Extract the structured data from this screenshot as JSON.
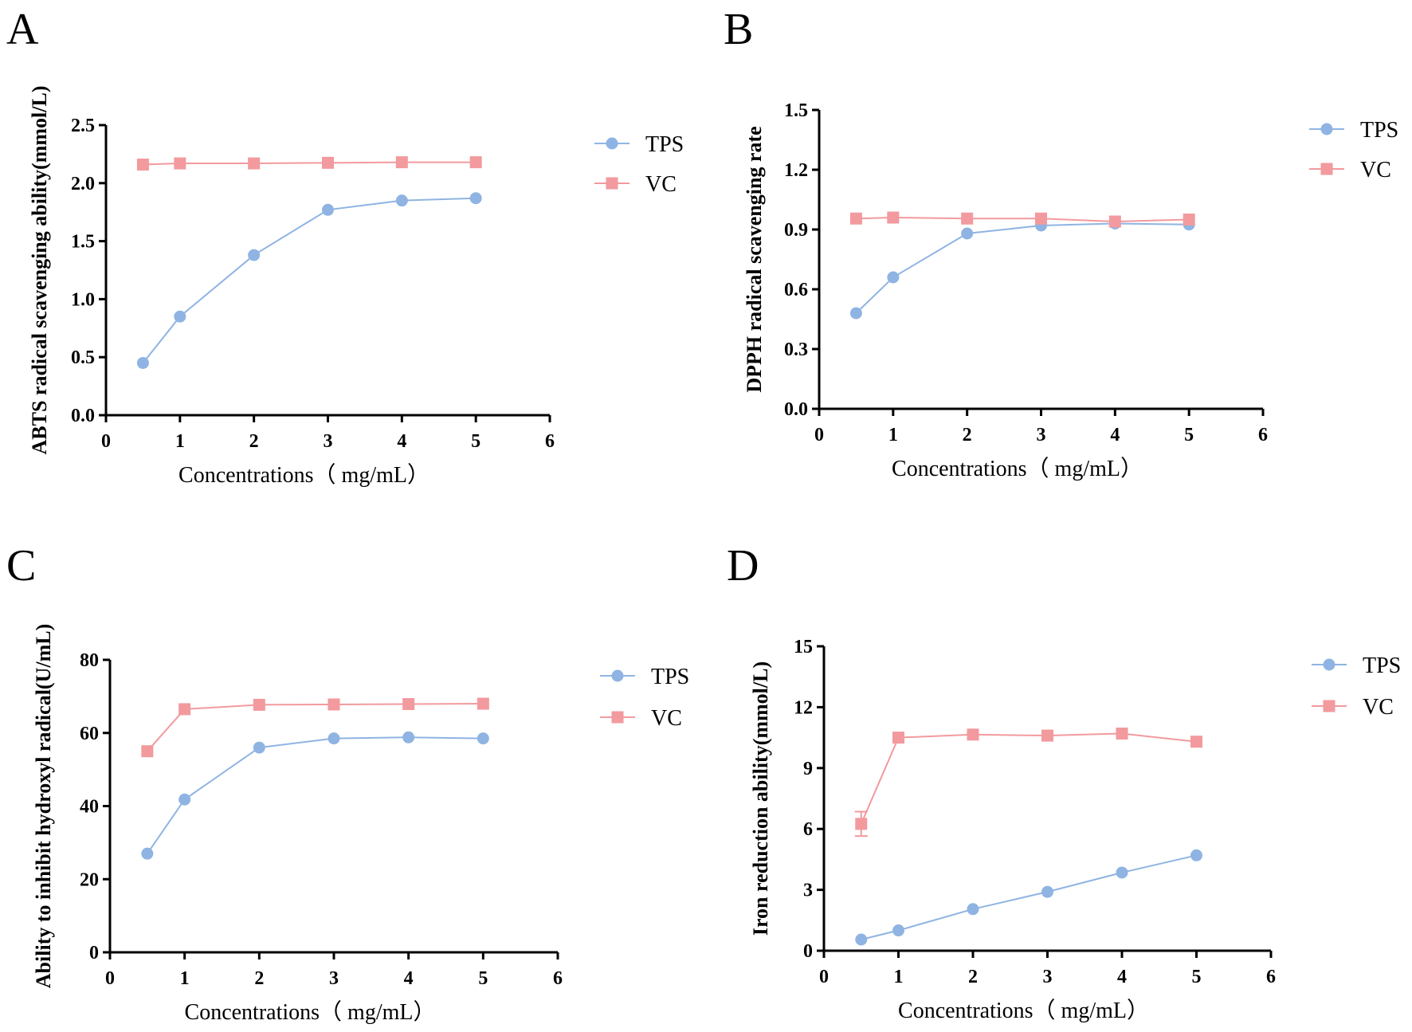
{
  "colors": {
    "tps": "#8FB4E3",
    "vc": "#F29A9E",
    "axis": "#000000"
  },
  "chart_data": [
    {
      "panel": "A",
      "type": "line",
      "xlabel": "Concentrations（ mg/mL）",
      "ylabel": "ABTS radical scavenging ability(mmol/L)",
      "xlim": [
        0,
        6
      ],
      "ylim": [
        0,
        2.5
      ],
      "xticks": [
        "0",
        "1",
        "2",
        "3",
        "4",
        "5",
        "6"
      ],
      "yticks": [
        "0.0",
        "0.5",
        "1.0",
        "1.5",
        "2.0",
        "2.5"
      ],
      "legend_position": "right",
      "series": [
        {
          "name": "TPS",
          "marker": "circle",
          "x": [
            0.5,
            1,
            2,
            3,
            4,
            5
          ],
          "values": [
            0.45,
            0.85,
            1.38,
            1.77,
            1.85,
            1.87
          ]
        },
        {
          "name": "VC",
          "marker": "square",
          "x": [
            0.5,
            1,
            2,
            3,
            4,
            5
          ],
          "values": [
            2.16,
            2.17,
            2.17,
            2.175,
            2.18,
            2.18
          ]
        }
      ]
    },
    {
      "panel": "B",
      "type": "line",
      "xlabel": "Concentrations（ mg/mL）",
      "ylabel": "DPPH  radical scavenging rate",
      "xlim": [
        0,
        6
      ],
      "ylim": [
        0,
        1.5
      ],
      "xticks": [
        "0",
        "1",
        "2",
        "3",
        "4",
        "5",
        "6"
      ],
      "yticks": [
        "0.0",
        "0.3",
        "0.6",
        "0.9",
        "1.2",
        "1.5"
      ],
      "legend_position": "right",
      "series": [
        {
          "name": "TPS",
          "marker": "circle",
          "x": [
            0.5,
            1,
            2,
            3,
            4,
            5
          ],
          "values": [
            0.48,
            0.66,
            0.88,
            0.92,
            0.93,
            0.925
          ]
        },
        {
          "name": "VC",
          "marker": "square",
          "x": [
            0.5,
            1,
            2,
            3,
            4,
            5
          ],
          "values": [
            0.955,
            0.96,
            0.955,
            0.955,
            0.94,
            0.95
          ]
        }
      ]
    },
    {
      "panel": "C",
      "type": "line",
      "xlabel": "Concentrations（ mg/mL）",
      "ylabel": "Ability to inhibit hydroxyl radical(U/mL)",
      "xlim": [
        0,
        6
      ],
      "ylim": [
        0,
        80
      ],
      "xticks": [
        "0",
        "1",
        "2",
        "3",
        "4",
        "5",
        "6"
      ],
      "yticks": [
        "0",
        "20",
        "40",
        "60",
        "80"
      ],
      "legend_position": "right",
      "series": [
        {
          "name": "TPS",
          "marker": "circle",
          "x": [
            0.5,
            1,
            2,
            3,
            4,
            5
          ],
          "values": [
            27,
            41.8,
            56,
            58.5,
            58.8,
            58.5
          ]
        },
        {
          "name": "VC",
          "marker": "square",
          "x": [
            0.5,
            1,
            2,
            3,
            4,
            5
          ],
          "values": [
            55,
            66.5,
            67.7,
            67.8,
            67.9,
            68
          ]
        }
      ]
    },
    {
      "panel": "D",
      "type": "line",
      "xlabel": "Concentrations（ mg/mL）",
      "ylabel": "Iron reduction ability(mmol/L)",
      "xlim": [
        0,
        6
      ],
      "ylim": [
        0,
        15
      ],
      "xticks": [
        "0",
        "1",
        "2",
        "3",
        "4",
        "5",
        "6"
      ],
      "yticks": [
        "0",
        "3",
        "6",
        "9",
        "12",
        "15"
      ],
      "legend_position": "right",
      "series": [
        {
          "name": "TPS",
          "marker": "circle",
          "x": [
            0.5,
            1,
            2,
            3,
            4,
            5
          ],
          "values": [
            0.55,
            1.0,
            2.05,
            2.9,
            3.85,
            4.7
          ]
        },
        {
          "name": "VC",
          "marker": "square",
          "x": [
            0.5,
            1,
            2,
            3,
            4,
            5
          ],
          "values": [
            6.25,
            10.5,
            10.65,
            10.6,
            10.7,
            10.3
          ],
          "error": [
            0.6,
            0,
            0,
            0,
            0,
            0
          ]
        }
      ]
    }
  ]
}
